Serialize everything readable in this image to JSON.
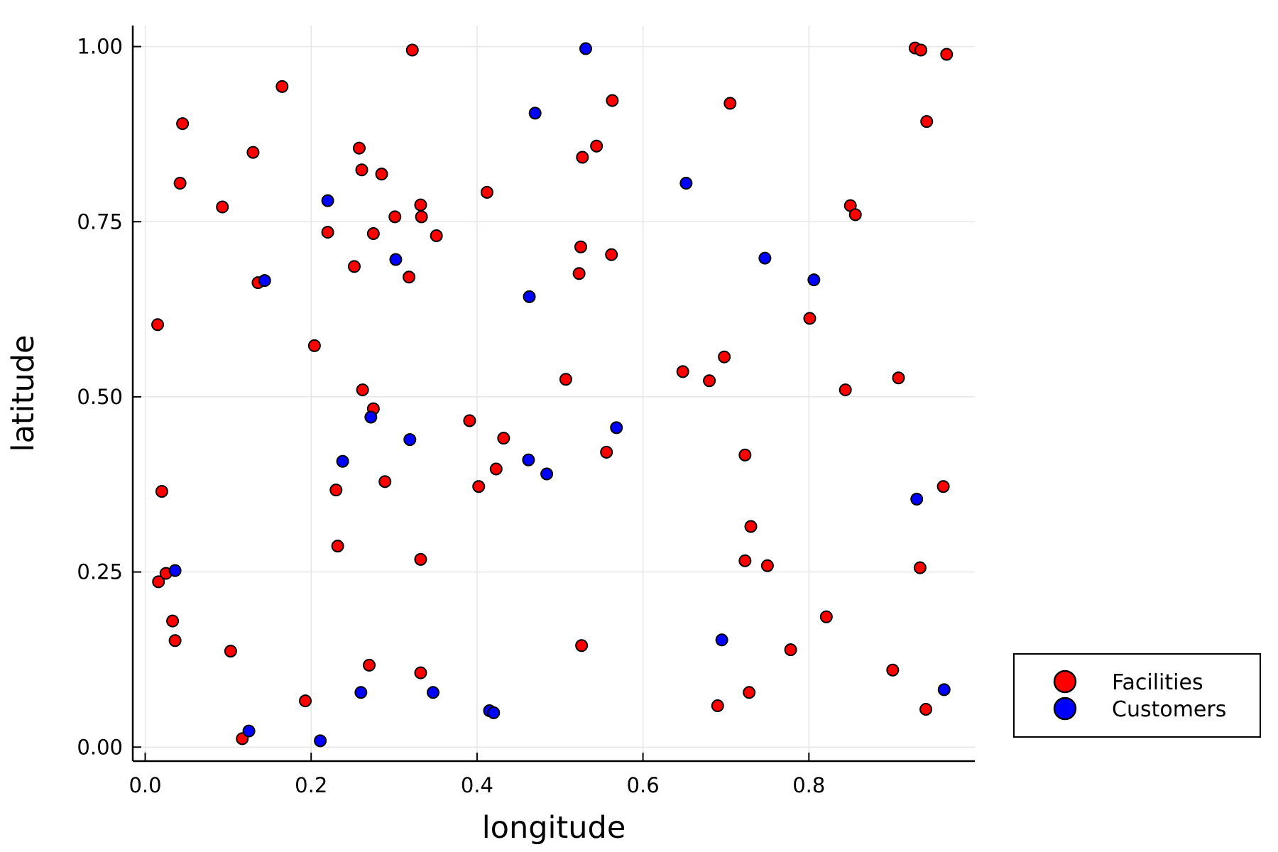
{
  "chart_data": {
    "type": "scatter",
    "xlabel": "longitude",
    "ylabel": "latitude",
    "xlim": [
      -0.015,
      1.0
    ],
    "ylim": [
      -0.02,
      1.03
    ],
    "xticks": [
      0.0,
      0.2,
      0.4,
      0.6,
      0.8
    ],
    "xtick_labels": [
      "0.0",
      "0.2",
      "0.4",
      "0.6",
      "0.8"
    ],
    "yticks": [
      0.0,
      0.25,
      0.5,
      0.75,
      1.0
    ],
    "ytick_labels": [
      "0.00",
      "0.25",
      "0.50",
      "0.75",
      "1.00"
    ],
    "grid": true,
    "legend_position": "outside-bottom-right",
    "series": [
      {
        "name": "Facilities",
        "color": "#ff0000",
        "points": [
          [
            0.322,
            0.995
          ],
          [
            0.165,
            0.943
          ],
          [
            0.045,
            0.89
          ],
          [
            0.13,
            0.849
          ],
          [
            0.042,
            0.805
          ],
          [
            0.093,
            0.771
          ],
          [
            0.136,
            0.663
          ],
          [
            0.015,
            0.603
          ],
          [
            0.204,
            0.573
          ],
          [
            0.258,
            0.855
          ],
          [
            0.261,
            0.824
          ],
          [
            0.285,
            0.818
          ],
          [
            0.22,
            0.735
          ],
          [
            0.301,
            0.757
          ],
          [
            0.332,
            0.774
          ],
          [
            0.333,
            0.757
          ],
          [
            0.275,
            0.733
          ],
          [
            0.351,
            0.73
          ],
          [
            0.252,
            0.686
          ],
          [
            0.318,
            0.671
          ],
          [
            0.262,
            0.51
          ],
          [
            0.275,
            0.483
          ],
          [
            0.02,
            0.365
          ],
          [
            0.23,
            0.367
          ],
          [
            0.289,
            0.379
          ],
          [
            0.232,
            0.287
          ],
          [
            0.016,
            0.236
          ],
          [
            0.025,
            0.248
          ],
          [
            0.033,
            0.18
          ],
          [
            0.036,
            0.152
          ],
          [
            0.103,
            0.137
          ],
          [
            0.332,
            0.268
          ],
          [
            0.27,
            0.117
          ],
          [
            0.332,
            0.106
          ],
          [
            0.193,
            0.066
          ],
          [
            0.117,
            0.012
          ],
          [
            0.412,
            0.792
          ],
          [
            0.391,
            0.466
          ],
          [
            0.432,
            0.441
          ],
          [
            0.423,
            0.397
          ],
          [
            0.402,
            0.372
          ],
          [
            0.563,
            0.923
          ],
          [
            0.544,
            0.858
          ],
          [
            0.527,
            0.842
          ],
          [
            0.525,
            0.714
          ],
          [
            0.523,
            0.676
          ],
          [
            0.562,
            0.703
          ],
          [
            0.507,
            0.525
          ],
          [
            0.556,
            0.421
          ],
          [
            0.526,
            0.145
          ],
          [
            0.705,
            0.919
          ],
          [
            0.648,
            0.536
          ],
          [
            0.68,
            0.523
          ],
          [
            0.698,
            0.557
          ],
          [
            0.723,
            0.417
          ],
          [
            0.73,
            0.315
          ],
          [
            0.723,
            0.266
          ],
          [
            0.75,
            0.259
          ],
          [
            0.69,
            0.059
          ],
          [
            0.728,
            0.078
          ],
          [
            0.778,
            0.139
          ],
          [
            0.801,
            0.612
          ],
          [
            0.85,
            0.773
          ],
          [
            0.856,
            0.76
          ],
          [
            0.844,
            0.51
          ],
          [
            0.821,
            0.186
          ],
          [
            0.908,
            0.527
          ],
          [
            0.928,
            0.998
          ],
          [
            0.935,
            0.995
          ],
          [
            0.966,
            0.989
          ],
          [
            0.942,
            0.893
          ],
          [
            0.962,
            0.372
          ],
          [
            0.934,
            0.256
          ],
          [
            0.901,
            0.11
          ],
          [
            0.941,
            0.054
          ]
        ]
      },
      {
        "name": "Customers",
        "color": "#0000ff",
        "points": [
          [
            0.531,
            0.997
          ],
          [
            0.47,
            0.905
          ],
          [
            0.652,
            0.805
          ],
          [
            0.22,
            0.78
          ],
          [
            0.144,
            0.666
          ],
          [
            0.302,
            0.696
          ],
          [
            0.463,
            0.643
          ],
          [
            0.747,
            0.698
          ],
          [
            0.806,
            0.667
          ],
          [
            0.272,
            0.471
          ],
          [
            0.319,
            0.439
          ],
          [
            0.238,
            0.408
          ],
          [
            0.568,
            0.456
          ],
          [
            0.462,
            0.41
          ],
          [
            0.484,
            0.39
          ],
          [
            0.036,
            0.252
          ],
          [
            0.93,
            0.354
          ],
          [
            0.695,
            0.153
          ],
          [
            0.26,
            0.078
          ],
          [
            0.347,
            0.078
          ],
          [
            0.125,
            0.023
          ],
          [
            0.211,
            0.009
          ],
          [
            0.415,
            0.052
          ],
          [
            0.42,
            0.049
          ],
          [
            0.963,
            0.082
          ]
        ]
      }
    ]
  }
}
